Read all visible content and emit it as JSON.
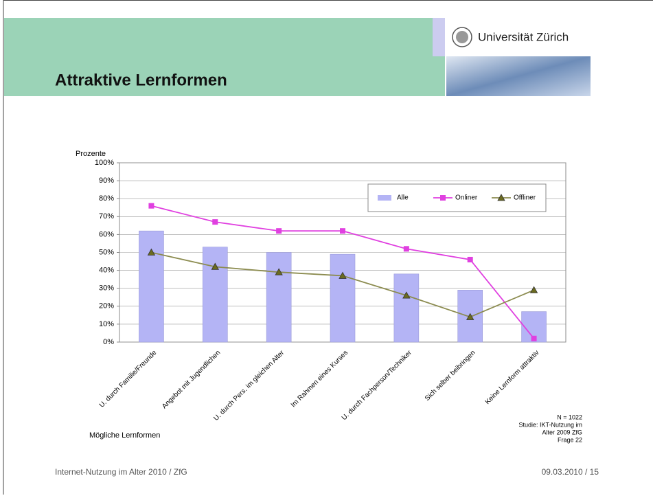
{
  "header": {
    "title": "Attraktive Lernformen",
    "logo_text": "Universität Zürich"
  },
  "chart_data": {
    "type": "bar",
    "y_label": "Prozente",
    "x_label": "Mögliche Lernformen",
    "categories": [
      "U. durch Familie/Freunde",
      "Angebot mit Jugendlichen",
      "U. durch Pers. im gleichen Alter",
      "Im Rahmen eines Kurses",
      "U. durch Fachperson/Techniker",
      "Sich selber beibringen",
      "Keine Lernform attraktiv"
    ],
    "series": [
      {
        "name": "Alle",
        "type": "bar",
        "color": "#b4b4f5",
        "values": [
          62,
          53,
          50,
          49,
          38,
          29,
          17
        ]
      },
      {
        "name": "Onliner",
        "type": "line",
        "marker": "square",
        "color": "#e040e0",
        "values": [
          76,
          67,
          62,
          62,
          52,
          46,
          2
        ]
      },
      {
        "name": "Offliner",
        "type": "line",
        "marker": "triangle",
        "color": "#8c8c50",
        "values": [
          50,
          42,
          39,
          37,
          26,
          14,
          29
        ]
      }
    ],
    "ylim": [
      0,
      100
    ],
    "yticks": [
      {
        "value": 0,
        "label": "0%"
      },
      {
        "value": 10,
        "label": "10%"
      },
      {
        "value": 20,
        "label": "20%"
      },
      {
        "value": 30,
        "label": "30%"
      },
      {
        "value": 40,
        "label": "40%"
      },
      {
        "value": 50,
        "label": "50%"
      },
      {
        "value": 60,
        "label": "60%"
      },
      {
        "value": 70,
        "label": "70%"
      },
      {
        "value": 80,
        "label": "80%"
      },
      {
        "value": 90,
        "label": "90%"
      },
      {
        "value": 100,
        "label": "100%"
      }
    ],
    "grid": true,
    "legend": "upper right",
    "notes": [
      "N = 1022",
      "Studie: IKT-Nutzung im",
      "Alter 2009 ZfG",
      "Frage 22"
    ]
  },
  "footer": {
    "left": "Internet-Nutzung im Alter 2010 / ZfG",
    "right": "09.03.2010 / 15"
  }
}
